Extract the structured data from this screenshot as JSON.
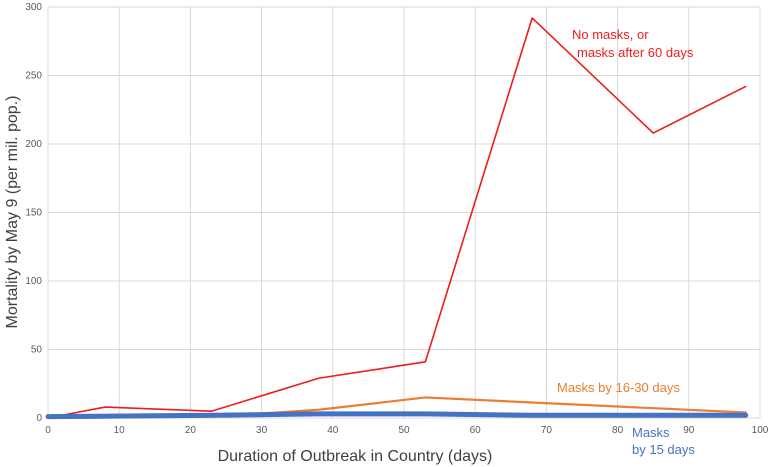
{
  "chart_data": {
    "type": "line",
    "xlabel": "Duration of Outbreak in Country (days)",
    "ylabel": "Mortality by May 9 (per mil. pop.)",
    "xlim": [
      0,
      100
    ],
    "ylim": [
      0,
      300
    ],
    "xticks": [
      0,
      10,
      20,
      30,
      40,
      50,
      60,
      70,
      80,
      90,
      100
    ],
    "yticks": [
      0,
      50,
      100,
      150,
      200,
      250,
      300
    ],
    "grid": true,
    "series": [
      {
        "label_lines": [
          "No masks, or",
          "masks after 60 days"
        ],
        "color": "#ee1c1c",
        "x": [
          0,
          8,
          23,
          38,
          53,
          68,
          85,
          98
        ],
        "y": [
          0,
          8,
          5,
          29,
          41,
          292,
          208,
          242
        ]
      },
      {
        "label_lines": [
          "Masks by 16-30 days"
        ],
        "color": "#ed7d31",
        "x": [
          0,
          23,
          38,
          53,
          98
        ],
        "y": [
          0,
          1,
          6,
          15,
          4
        ]
      },
      {
        "label_lines": [
          "Masks",
          "by 15 days"
        ],
        "color": "#4472c4",
        "x": [
          0,
          23,
          38,
          53,
          68,
          85,
          98
        ],
        "y": [
          1,
          2,
          3,
          3,
          2,
          2,
          2
        ]
      }
    ]
  }
}
